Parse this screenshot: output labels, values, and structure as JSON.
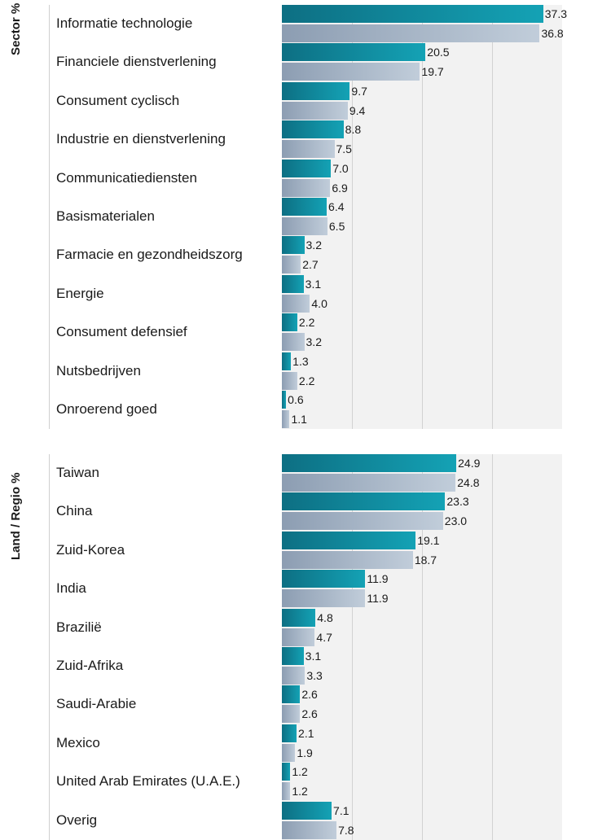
{
  "colors": {
    "fund_start": "#0d6f83",
    "fund_end": "#14a2b5",
    "bench_start": "#8c9db2",
    "bench_end": "#c1cdda",
    "plot_background": "#f2f2f2"
  },
  "chart_data": [
    {
      "type": "bar",
      "orientation": "horizontal",
      "title": "Sector %",
      "xlim": [
        0,
        40
      ],
      "grid": true,
      "categories": [
        "Informatie technologie",
        "Financiele dienstverlening",
        "Consument cyclisch",
        "Industrie en dienstverlening",
        "Communicatiediensten",
        "Basismaterialen",
        "Farmacie en gezondheidszorg",
        "Energie",
        "Consument defensief",
        "Nutsbedrijven",
        "Onroerend goed"
      ],
      "series": [
        {
          "values": [
            37.3,
            20.5,
            9.7,
            8.8,
            7.0,
            6.4,
            3.2,
            3.1,
            2.2,
            1.3,
            0.6
          ],
          "labels": [
            "37.3",
            "20.5",
            "9.7",
            "8.8",
            "7.0",
            "6.4",
            "3.2",
            "3.1",
            "2.2",
            "1.3",
            "0.6"
          ]
        },
        {
          "values": [
            36.8,
            19.7,
            9.4,
            7.5,
            6.9,
            6.5,
            2.7,
            4.0,
            3.2,
            2.2,
            1.1
          ],
          "labels": [
            "36.8",
            "19.7",
            "9.4",
            "7.5",
            "6.9",
            "6.5",
            "2.7",
            "4.0",
            "3.2",
            "2.2",
            "1.1"
          ]
        }
      ]
    },
    {
      "type": "bar",
      "orientation": "horizontal",
      "title": "Land / Regio %",
      "xlim": [
        0,
        40
      ],
      "grid": true,
      "categories": [
        "Taiwan",
        "China",
        "Zuid-Korea",
        "India",
        "Brazilië",
        "Zuid-Afrika",
        "Saudi-Arabie",
        "Mexico",
        "United Arab Emirates (U.A.E.)",
        "Overig"
      ],
      "series": [
        {
          "values": [
            24.9,
            23.3,
            19.1,
            11.9,
            4.8,
            3.1,
            2.6,
            2.1,
            1.2,
            7.1
          ],
          "labels": [
            "24.9",
            "23.3",
            "19.1",
            "11.9",
            "4.8",
            "3.1",
            "2.6",
            "2.1",
            "1.2",
            "7.1"
          ]
        },
        {
          "values": [
            24.8,
            23.0,
            18.7,
            11.9,
            4.7,
            3.3,
            2.6,
            1.9,
            1.2,
            7.8
          ],
          "labels": [
            "24.8",
            "23.0",
            "18.7",
            "11.9",
            "4.7",
            "3.3",
            "2.6",
            "1.9",
            "1.2",
            "7.8"
          ]
        }
      ]
    }
  ]
}
